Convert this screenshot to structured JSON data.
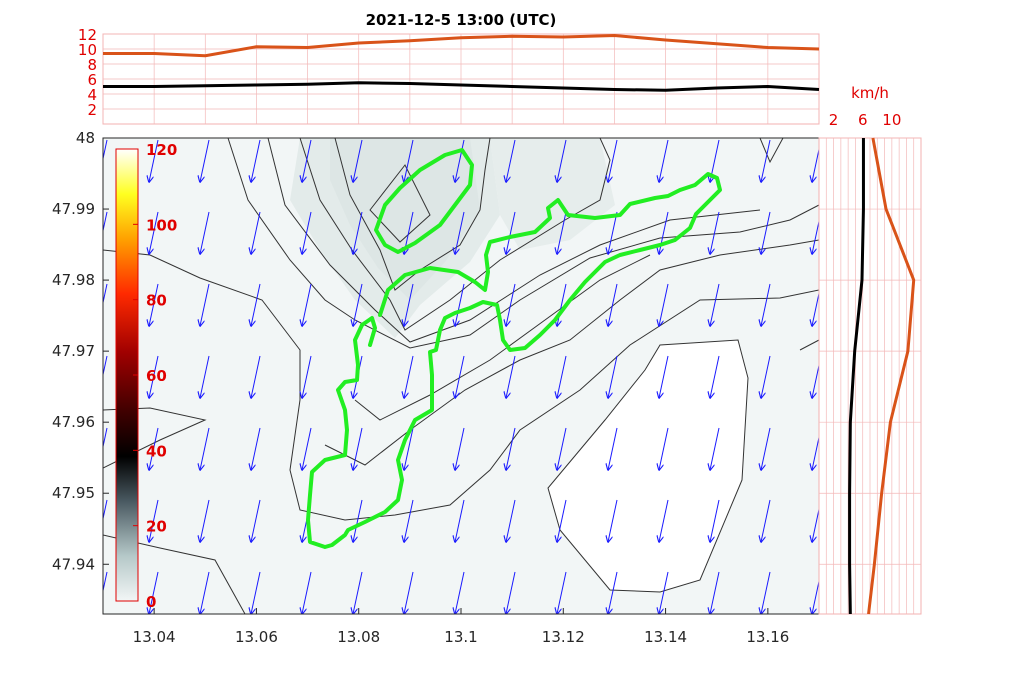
{
  "chart_data": {
    "type": "contour",
    "title": "2021-12-5  13:00 (UTC)",
    "main_map": {
      "x_ticks": [
        "13.04",
        "13.06",
        "13.08",
        "13.1",
        "13.12",
        "13.14",
        "13.16"
      ],
      "y_ticks": [
        "48",
        "47.99",
        "47.98",
        "47.97",
        "47.96",
        "47.95",
        "47.94"
      ],
      "xlim": [
        13.03,
        13.17
      ],
      "ylim": [
        47.933,
        48.0
      ],
      "wind_vector_color": "#1a1aff",
      "outline_color": "#22ee22",
      "wind_vector_direction": "from north-northeast"
    },
    "colorbar": {
      "ticks": [
        "120",
        "100",
        "80",
        "60",
        "40",
        "20",
        "0"
      ],
      "range": [
        0,
        120
      ],
      "colormap": "white-yellow-red-black-gray"
    },
    "top_profile": {
      "y_ticks": [
        "12",
        "10",
        "8",
        "6",
        "4",
        "2"
      ],
      "ylim": [
        0,
        12
      ],
      "x": [
        13.03,
        13.04,
        13.05,
        13.06,
        13.07,
        13.08,
        13.09,
        13.1,
        13.11,
        13.12,
        13.13,
        13.14,
        13.15,
        13.16,
        13.17
      ],
      "series": [
        {
          "color": "#d95319",
          "values": [
            9.4,
            9.4,
            9.1,
            10.3,
            10.2,
            10.8,
            11.1,
            11.5,
            11.7,
            11.6,
            11.8,
            11.2,
            10.7,
            10.2,
            10.0
          ]
        },
        {
          "color": "#000000",
          "values": [
            5.0,
            5.0,
            5.1,
            5.2,
            5.3,
            5.5,
            5.4,
            5.2,
            5.0,
            4.8,
            4.6,
            4.5,
            4.8,
            5.0,
            4.6
          ]
        }
      ]
    },
    "right_profile": {
      "unit": "km/h",
      "x_ticks": [
        "2",
        "6",
        "10"
      ],
      "xlim": [
        0,
        14
      ],
      "y": [
        48.0,
        47.99,
        47.98,
        47.97,
        47.96,
        47.95,
        47.94,
        47.933
      ],
      "series": [
        {
          "color": "#d95319",
          "values": [
            7.4,
            9.2,
            13.0,
            12.2,
            9.8,
            8.6,
            7.6,
            6.8
          ]
        },
        {
          "color": "#000000",
          "values": [
            6.1,
            6.1,
            5.9,
            4.9,
            4.3,
            4.2,
            4.2,
            4.3
          ]
        }
      ]
    }
  }
}
